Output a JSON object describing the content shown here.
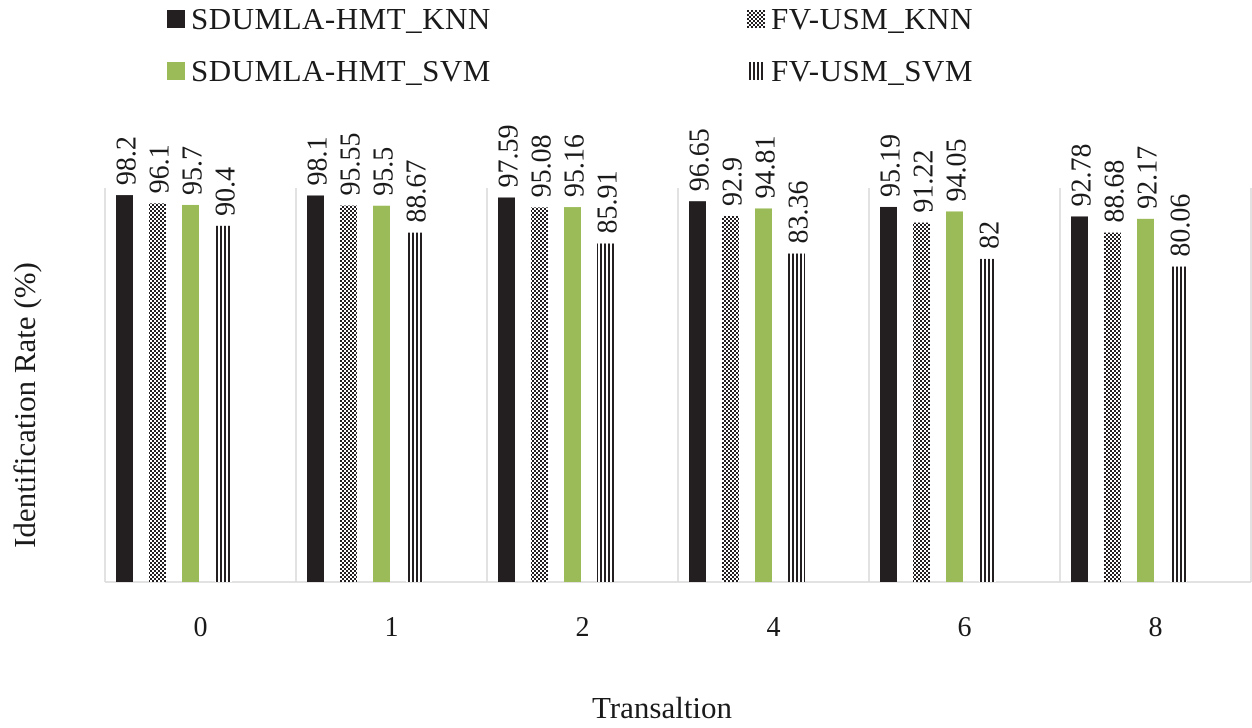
{
  "chart_data": {
    "type": "bar",
    "title": "",
    "xlabel": "Transaltion",
    "ylabel": "Identification Rate (%)",
    "ylim": [
      0,
      100
    ],
    "categories": [
      "0",
      "1",
      "2",
      "4",
      "6",
      "8"
    ],
    "series": [
      {
        "name": "SDUMLA-HMT_KNN",
        "color": "#231f20",
        "pattern": "solid",
        "values": [
          98.2,
          98.1,
          97.59,
          96.65,
          95.19,
          92.78
        ],
        "labels": [
          "98.2",
          "98.1",
          "97.59",
          "96.65",
          "95.19",
          "92.78"
        ]
      },
      {
        "name": "FV-USM_KNN",
        "color": "#231f20",
        "pattern": "checker",
        "values": [
          96.1,
          95.55,
          95.08,
          92.9,
          91.22,
          88.68
        ],
        "labels": [
          "96.1",
          "95.55",
          "95.08",
          "92.9",
          "91.22",
          "88.68"
        ]
      },
      {
        "name": "SDUMLA-HMT_SVM",
        "color": "#9bbb59",
        "pattern": "solid",
        "values": [
          95.7,
          95.5,
          95.16,
          94.81,
          94.05,
          92.17
        ],
        "labels": [
          "95.7",
          "95.5",
          "95.16",
          "94.81",
          "94.05",
          "92.17"
        ]
      },
      {
        "name": "FV-USM_SVM",
        "color": "#231f20",
        "pattern": "vstripes",
        "values": [
          90.4,
          88.67,
          85.91,
          83.36,
          82,
          80.06
        ],
        "labels": [
          "90.4",
          "88.67",
          "85.91",
          "83.36",
          "82",
          "80.06"
        ]
      }
    ],
    "grid": true,
    "legend_position": "top"
  }
}
